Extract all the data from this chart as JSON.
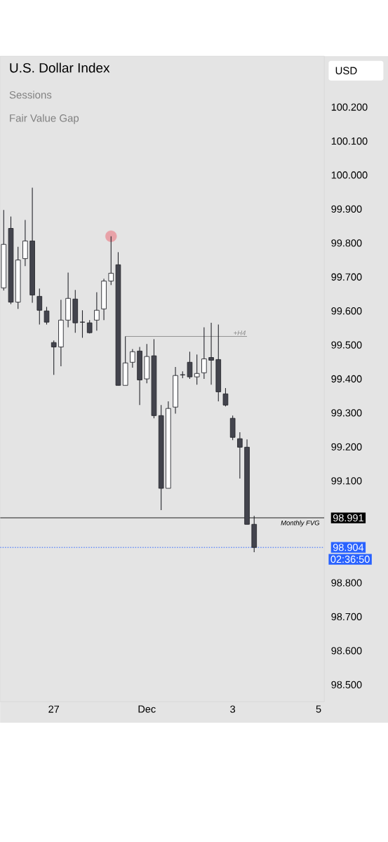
{
  "chart_data": {
    "type": "candlestick",
    "title": "U.S. Dollar Index",
    "ylabel": "USD",
    "annotations": [
      "Sessions",
      "Fair Value Gap",
      "02:36:50"
    ],
    "categories": [
      null,
      null,
      null,
      null,
      null,
      null,
      null,
      "27",
      null,
      null,
      null,
      null,
      null,
      null,
      null,
      null,
      null,
      null,
      null,
      null,
      "Dec",
      null,
      null,
      null,
      null,
      null,
      null,
      null,
      null,
      null,
      null,
      null,
      "3",
      null,
      null,
      null,
      null,
      null,
      null,
      null,
      null,
      null,
      null,
      null,
      "5"
    ],
    "ohlc": [
      [
        99.668,
        99.897,
        99.66,
        99.796
      ],
      [
        99.843,
        99.878,
        99.62,
        99.626
      ],
      [
        99.626,
        99.789,
        99.606,
        99.75
      ],
      [
        99.754,
        99.868,
        99.732,
        99.806
      ],
      [
        99.806,
        99.963,
        99.624,
        99.647
      ],
      [
        99.643,
        99.666,
        99.56,
        99.602
      ],
      [
        99.6,
        99.612,
        99.56,
        99.567
      ],
      [
        99.507,
        99.513,
        99.412,
        99.494
      ],
      [
        99.494,
        99.633,
        99.437,
        99.573
      ],
      [
        99.573,
        99.713,
        99.552,
        99.637
      ],
      [
        99.635,
        99.662,
        99.536,
        99.565
      ],
      [
        99.567,
        99.602,
        99.521,
        99.567
      ],
      [
        99.565,
        99.573,
        99.534,
        99.536
      ],
      [
        99.573,
        99.655,
        99.542,
        99.602
      ],
      [
        99.606,
        99.695,
        99.573,
        99.688
      ],
      [
        99.688,
        99.82,
        99.676,
        99.711
      ],
      [
        99.736,
        99.773,
        99.381,
        99.381
      ],
      [
        99.381,
        99.525,
        99.381,
        99.447
      ],
      [
        99.449,
        99.488,
        99.433,
        99.48
      ],
      [
        99.482,
        99.494,
        99.323,
        99.397
      ],
      [
        99.4,
        99.503,
        99.387,
        99.466
      ],
      [
        99.468,
        99.517,
        99.284,
        99.292
      ],
      [
        99.292,
        99.323,
        99.014,
        99.078
      ],
      [
        99.078,
        99.334,
        99.078,
        99.313
      ],
      [
        99.317,
        99.435,
        99.298,
        99.41
      ],
      [
        99.412,
        99.422,
        99.402,
        99.412
      ],
      [
        99.449,
        99.48,
        99.4,
        99.406
      ],
      [
        99.406,
        99.472,
        99.383,
        99.416
      ],
      [
        99.418,
        99.552,
        99.4,
        99.459
      ],
      [
        99.463,
        99.565,
        99.383,
        99.455
      ],
      [
        99.457,
        99.56,
        99.334,
        99.362
      ],
      [
        99.356,
        99.373,
        99.319,
        99.323
      ],
      [
        99.284,
        99.292,
        99.22,
        99.228
      ],
      [
        99.224,
        99.243,
        99.107,
        99.199
      ],
      [
        99.199,
        99.222,
        98.972,
        98.972
      ],
      [
        98.972,
        98.997,
        98.89,
        98.904
      ],
      null,
      null,
      null,
      null,
      null,
      null,
      null,
      null,
      null
    ],
    "series": [
      {
        "type": "line",
        "name": "+H4",
        "color": "#8a8a8a",
        "values": [
          null,
          null,
          null,
          null,
          null,
          null,
          null,
          null,
          null,
          null,
          null,
          null,
          null,
          null,
          null,
          null,
          null,
          99.525,
          99.525,
          99.525,
          99.525,
          99.525,
          99.525,
          99.525,
          99.525,
          99.525,
          99.525,
          99.525,
          99.525,
          99.525,
          99.525,
          99.525,
          99.525,
          99.525,
          99.525,
          null,
          null,
          null,
          null,
          null,
          null,
          null,
          null,
          null,
          null
        ]
      },
      {
        "type": "scatter",
        "marker": "circle",
        "color": "#e8a2a8",
        "values": [
          null,
          null,
          null,
          null,
          null,
          null,
          null,
          null,
          null,
          null,
          null,
          null,
          null,
          null,
          null,
          99.82,
          null,
          null,
          null,
          null,
          null,
          null,
          null,
          null,
          null,
          null,
          null,
          null,
          null,
          null,
          null,
          null,
          null,
          null,
          null,
          null,
          null,
          null,
          null,
          null,
          null,
          null,
          null,
          null,
          null
        ]
      }
    ],
    "ylim": [
      98.45,
      100.35
    ],
    "yticks": [
      {
        "value": 100.2,
        "label": "100.200"
      },
      {
        "value": 100.1,
        "label": "100.100"
      },
      {
        "value": 100.0,
        "label": "100.000"
      },
      {
        "value": 99.9,
        "label": "99.900"
      },
      {
        "value": 99.8,
        "label": "99.800"
      },
      {
        "value": 99.7,
        "label": "99.700"
      },
      {
        "value": 99.6,
        "label": "99.600"
      },
      {
        "value": 99.5,
        "label": "99.500"
      },
      {
        "value": 99.4,
        "label": "99.400"
      },
      {
        "value": 99.3,
        "label": "99.300"
      },
      {
        "value": 99.2,
        "label": "99.200"
      },
      {
        "value": 99.1,
        "label": "99.100"
      },
      {
        "value": 98.991,
        "label": "98.991"
      },
      {
        "value": 98.904,
        "label": "98.904"
      },
      {
        "value": 98.8,
        "label": "98.800"
      },
      {
        "value": 98.7,
        "label": "98.700"
      },
      {
        "value": 98.6,
        "label": "98.600"
      },
      {
        "value": 98.5,
        "label": "98.500"
      }
    ],
    "ref_lines": [
      {
        "axis": "y",
        "value": 98.991,
        "label": "Monthly FVG",
        "color": "#000000",
        "line_style": "solid"
      },
      {
        "axis": "y",
        "value": 98.904,
        "label": null,
        "color": "#2962ff",
        "line_style": "dotted"
      }
    ],
    "grid": false
  }
}
